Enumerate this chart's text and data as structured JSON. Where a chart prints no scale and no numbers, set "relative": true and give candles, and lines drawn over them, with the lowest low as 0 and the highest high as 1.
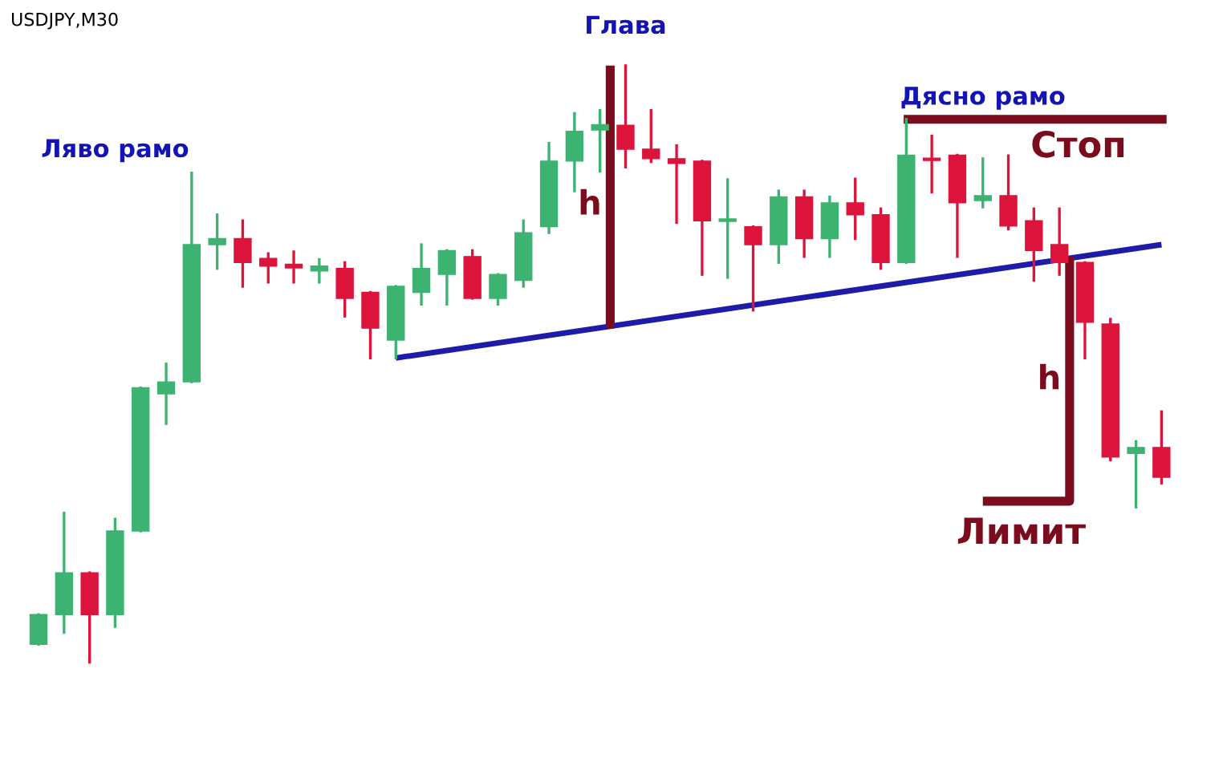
{
  "chart_data": {
    "type": "candlestick",
    "relative": true,
    "categories": [
      null,
      null,
      null,
      null,
      null,
      null,
      null,
      null,
      null,
      null,
      null,
      null,
      null,
      null,
      null,
      null,
      null,
      null,
      null,
      null,
      null,
      null,
      null,
      null,
      null,
      null,
      null,
      null,
      null,
      null,
      null,
      null,
      null,
      null,
      null,
      null,
      null,
      null,
      null,
      null,
      null,
      null,
      null,
      null,
      null
    ],
    "ohlc": [
      [
        0.03,
        0.08,
        0.03,
        0.08
      ],
      [
        0.08,
        0.25,
        0.05,
        0.15
      ],
      [
        0.15,
        0.15,
        0,
        0.08
      ],
      [
        0.08,
        0.24,
        0.06,
        0.22
      ],
      [
        0.22,
        0.46,
        0.22,
        0.46
      ],
      [
        0.45,
        0.5,
        0.4,
        0.47
      ],
      [
        0.47,
        0.82,
        0.47,
        0.7
      ],
      [
        0.7,
        0.75,
        0.66,
        0.71
      ],
      [
        0.71,
        0.74,
        0.63,
        0.67
      ],
      [
        0.677,
        0.685,
        0.637,
        0.664
      ],
      [
        0.667,
        0.688,
        0.637,
        0.661
      ],
      [
        0.656,
        0.675,
        0.637,
        0.664
      ],
      [
        0.66,
        0.67,
        0.58,
        0.61
      ],
      [
        0.62,
        0.62,
        0.51,
        0.56
      ],
      [
        0.54,
        0.63,
        0.51,
        0.63
      ],
      [
        0.62,
        0.7,
        0.6,
        0.66
      ],
      [
        0.65,
        0.69,
        0.6,
        0.69
      ],
      [
        0.68,
        0.69,
        0.61,
        0.61
      ],
      [
        0.61,
        0.65,
        0.6,
        0.65
      ],
      [
        0.64,
        0.74,
        0.63,
        0.72
      ],
      [
        0.73,
        0.87,
        0.72,
        0.84
      ],
      [
        0.84,
        0.92,
        0.79,
        0.89
      ],
      [
        0.892,
        0.925,
        0.823,
        0.901
      ],
      [
        0.9,
        1.0,
        0.83,
        0.86
      ],
      [
        0.86,
        0.925,
        0.839,
        0.844
      ],
      [
        0.844,
        0.866,
        0.737,
        0.836
      ],
      [
        0.84,
        0.84,
        0.65,
        0.74
      ],
      [
        0.739,
        0.809,
        0.645,
        0.742
      ],
      [
        0.73,
        0.73,
        0.59,
        0.7
      ],
      [
        0.7,
        0.79,
        0.67,
        0.78
      ],
      [
        0.78,
        0.79,
        0.68,
        0.71
      ],
      [
        0.71,
        0.78,
        0.68,
        0.77
      ],
      [
        0.77,
        0.81,
        0.71,
        0.75
      ],
      [
        0.75,
        0.76,
        0.66,
        0.67
      ],
      [
        0.67,
        0.91,
        0.67,
        0.85
      ],
      [
        0.844,
        0.882,
        0.788,
        0.841
      ],
      [
        0.85,
        0.85,
        0.68,
        0.77
      ],
      [
        0.774,
        0.844,
        0.763,
        0.782
      ],
      [
        0.782,
        0.849,
        0.726,
        0.731
      ],
      [
        0.74,
        0.76,
        0.64,
        0.69
      ],
      [
        0.7,
        0.76,
        0.65,
        0.67
      ],
      [
        0.67,
        0.67,
        0.51,
        0.57
      ],
      [
        0.567,
        0.575,
        0.339,
        0.344
      ],
      [
        0.35,
        0.37,
        0.26,
        0.36
      ],
      [
        0.36,
        0.42,
        0.3,
        0.31
      ]
    ],
    "colors": [
      "#3cb371",
      "#3cb371",
      "#dc143c",
      "#3cb371",
      "#3cb371",
      "#3cb371",
      "#3cb371",
      "#3cb371",
      "#dc143c",
      "#dc143c",
      "#dc143c",
      "#3cb371",
      "#dc143c",
      "#dc143c",
      "#3cb371",
      "#3cb371",
      "#3cb371",
      "#dc143c",
      "#3cb371",
      "#3cb371",
      "#3cb371",
      "#3cb371",
      "#3cb371",
      "#dc143c",
      "#dc143c",
      "#dc143c",
      "#dc143c",
      "#3cb371",
      "#dc143c",
      "#3cb371",
      "#dc143c",
      "#3cb371",
      "#dc143c",
      "#dc143c",
      "#3cb371",
      "#dc143c",
      "#dc143c",
      "#3cb371",
      "#dc143c",
      "#dc143c",
      "#dc143c",
      "#dc143c",
      "#dc143c",
      "#3cb371",
      "#dc143c"
    ],
    "series": [
      {
        "type": "line",
        "values": [
          null,
          null,
          null,
          null,
          null,
          null,
          null,
          null,
          null,
          null,
          null,
          null,
          null,
          null,
          0.51,
          null,
          null,
          null,
          null,
          null,
          null,
          null,
          null,
          null,
          null,
          null,
          null,
          null,
          null,
          null,
          null,
          null,
          null,
          null,
          null,
          null,
          null,
          null,
          null,
          null,
          null,
          null,
          null,
          null,
          0.7
        ],
        "color": "#1c1ca8"
      }
    ],
    "annotations": [
      "USDJPY,M30",
      "Глава",
      "Ляво рамо",
      "Дясно рамо",
      "Стоп",
      "Лимит",
      "h",
      "h"
    ]
  }
}
